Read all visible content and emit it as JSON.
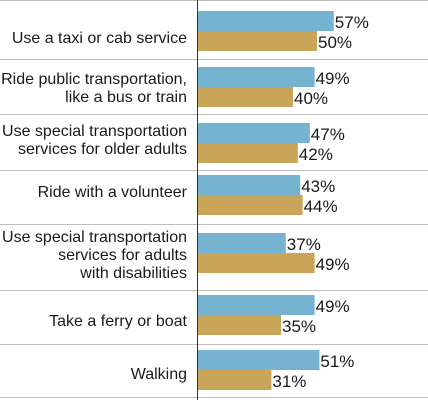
{
  "chart_data": {
    "type": "bar",
    "orientation": "horizontal",
    "categories": [
      [
        "Use a taxi or cab service"
      ],
      [
        "Ride public transportation,",
        "like a bus or train"
      ],
      [
        "Use special transportation",
        "services for older adults"
      ],
      [
        "Ride with a volunteer"
      ],
      [
        "Use special transportation",
        "services for adults",
        "with disabilities"
      ],
      [
        "Take a ferry or boat"
      ],
      [
        "Walking"
      ]
    ],
    "series": [
      {
        "color": "#75b3d1",
        "values": [
          57,
          49,
          47,
          43,
          37,
          49,
          51
        ]
      },
      {
        "color": "#c9a55a",
        "values": [
          50,
          40,
          42,
          44,
          49,
          35,
          31
        ]
      }
    ],
    "value_suffix": "%",
    "xlim": [
      0,
      100
    ],
    "legend": "none",
    "grid": false
  }
}
